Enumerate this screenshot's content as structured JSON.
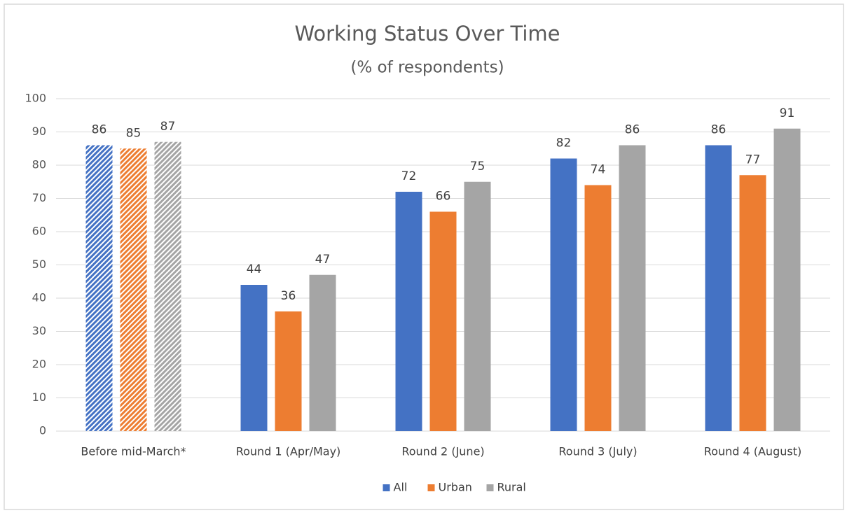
{
  "chart_data": {
    "type": "bar",
    "title": "Working Status Over Time",
    "subtitle": "(% of respondents)",
    "categories": [
      "Before mid-March*",
      "Round 1 (Apr/May)",
      "Round 2 (June)",
      "Round 3 (July)",
      "Round 4 (August)"
    ],
    "series": [
      {
        "name": "All",
        "color": "#4472c4",
        "values": [
          86,
          44,
          72,
          82,
          86
        ]
      },
      {
        "name": "Urban",
        "color": "#ed7d31",
        "values": [
          85,
          36,
          66,
          74,
          77
        ]
      },
      {
        "name": "Rural",
        "color": "#a5a5a5",
        "values": [
          87,
          47,
          75,
          86,
          91
        ]
      }
    ],
    "hatched_categories": [
      0
    ],
    "ylim": [
      0,
      100
    ],
    "yticks": [
      0,
      10,
      20,
      30,
      40,
      50,
      60,
      70,
      80,
      90,
      100
    ],
    "grid": true,
    "legend": "bottom"
  }
}
